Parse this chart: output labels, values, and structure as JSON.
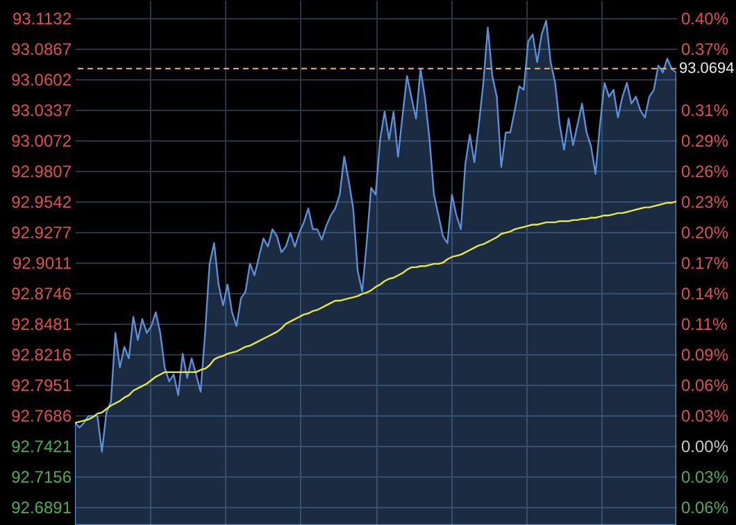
{
  "chart_data": {
    "type": "line",
    "categories": [
      null,
      null,
      null,
      null,
      null,
      null,
      null,
      null,
      null,
      null,
      null,
      null,
      null,
      null,
      null,
      null,
      null,
      null,
      null,
      null,
      null,
      null,
      null,
      null,
      null,
      null,
      null,
      null,
      null,
      null,
      null,
      null,
      null,
      null,
      null,
      null,
      null,
      null,
      null,
      null,
      null,
      null,
      null,
      null,
      null,
      null,
      null,
      null,
      null,
      null,
      null,
      null,
      null,
      null,
      null,
      null,
      null,
      null,
      null,
      null,
      null,
      null,
      null,
      null,
      null,
      null,
      null,
      null,
      null,
      null,
      null,
      null,
      null,
      null,
      null,
      null,
      null,
      null,
      null,
      null,
      null,
      null,
      null,
      null,
      null,
      null,
      null,
      null,
      null,
      null,
      null,
      null,
      null,
      null,
      null,
      null,
      null,
      null,
      null,
      null,
      null,
      null,
      null,
      null,
      null,
      null,
      null,
      null,
      null,
      null,
      null,
      null,
      null,
      null,
      null,
      null,
      null,
      null,
      null,
      null,
      null,
      null,
      null,
      null,
      null,
      null,
      null,
      null,
      null,
      null,
      null,
      null,
      null,
      null,
      null
    ],
    "ylim": [
      92.6734,
      93.1289
    ],
    "yticks": [
      92.6891,
      92.7156,
      92.7421,
      92.7686,
      92.7951,
      92.8216,
      92.8481,
      92.8746,
      92.9011,
      92.9277,
      92.9542,
      92.9807,
      93.0072,
      93.0337,
      93.0602,
      93.0867,
      93.1132
    ],
    "y2lim": [
      -0.0741,
      0.4171
    ],
    "y2ticks": [
      {
        "value": -0.0571,
        "label": "0.06%"
      },
      {
        "value": -0.0286,
        "label": "0.03%"
      },
      {
        "value": 0,
        "label": "0.00%"
      },
      {
        "value": 0.0286,
        "label": "0.03%"
      },
      {
        "value": 0.0571,
        "label": "0.06%"
      },
      {
        "value": 0.0857,
        "label": "0.09%"
      },
      {
        "value": 0.1143,
        "label": "0.11%"
      },
      {
        "value": 0.1429,
        "label": "0.14%"
      },
      {
        "value": 0.1714,
        "label": "0.17%"
      },
      {
        "value": 0.2,
        "label": "0.20%"
      },
      {
        "value": 0.2286,
        "label": "0.23%"
      },
      {
        "value": 0.2572,
        "label": "0.26%"
      },
      {
        "value": 0.2857,
        "label": "0.29%"
      },
      {
        "value": 0.3143,
        "label": "0.31%"
      },
      {
        "value": 0.3429,
        "label": null
      },
      {
        "value": 0.3715,
        "label": "0.37%"
      },
      {
        "value": 0.4,
        "label": "0.40%"
      }
    ],
    "grid": true,
    "line_style": "solid",
    "ref_lines": [
      {
        "axis": "y",
        "value": 93.0694,
        "label": "93.0694",
        "color": "#e8b878",
        "line_style": "dashed"
      }
    ],
    "series": [
      {
        "type": "area",
        "color": "#5b8fd8",
        "values": [
          92.762,
          92.758,
          92.762,
          92.768,
          92.768,
          92.768,
          92.737,
          92.771,
          92.78,
          92.84,
          92.81,
          92.828,
          92.818,
          92.854,
          92.834,
          92.852,
          92.84,
          92.846,
          92.858,
          92.84,
          92.81,
          92.798,
          92.804,
          92.786,
          92.822,
          92.801,
          92.818,
          92.804,
          92.789,
          92.84,
          92.9,
          92.918,
          92.882,
          92.864,
          92.882,
          92.858,
          92.846,
          92.87,
          92.876,
          92.9,
          92.89,
          92.906,
          92.922,
          92.915,
          92.93,
          92.924,
          92.91,
          92.915,
          92.927,
          92.915,
          92.927,
          92.936,
          92.948,
          92.93,
          92.93,
          92.921,
          92.933,
          92.942,
          92.948,
          92.96,
          92.993,
          92.972,
          92.948,
          92.894,
          92.876,
          92.918,
          92.966,
          92.96,
          93.008,
          93.032,
          93.008,
          93.032,
          92.993,
          93.029,
          93.063,
          93.044,
          93.026,
          93.069,
          93.044,
          93.008,
          92.96,
          92.942,
          92.924,
          92.918,
          92.96,
          92.942,
          92.93,
          92.987,
          93.012,
          92.988,
          93.021,
          93.057,
          93.105,
          93.063,
          93.045,
          92.984,
          93.014,
          93.014,
          93.033,
          93.054,
          93.051,
          93.093,
          93.099,
          93.075,
          93.099,
          93.111,
          93.075,
          93.057,
          93.021,
          92.999,
          93.026,
          93.003,
          93.021,
          93.039,
          93.014,
          93.002,
          92.978,
          93.021,
          93.057,
          93.045,
          93.051,
          93.027,
          93.045,
          93.057,
          93.039,
          93.045,
          93.033,
          93.027,
          93.045,
          93.051,
          93.072,
          93.066,
          93.078,
          93.069,
          93.066
        ]
      },
      {
        "color": "#e8e840",
        "values": [
          92.762,
          92.763,
          92.764,
          92.765,
          92.767,
          92.77,
          92.771,
          92.774,
          92.777,
          92.779,
          92.781,
          92.784,
          92.786,
          92.79,
          92.792,
          92.794,
          92.796,
          92.799,
          92.802,
          92.804,
          92.806,
          92.806,
          92.806,
          92.806,
          92.806,
          92.806,
          92.806,
          92.806,
          92.808,
          92.809,
          92.812,
          92.817,
          92.819,
          92.82,
          92.822,
          92.823,
          92.824,
          92.826,
          92.828,
          92.829,
          92.831,
          92.833,
          92.835,
          92.837,
          92.839,
          92.841,
          92.844,
          92.848,
          92.85,
          92.852,
          92.854,
          92.856,
          92.857,
          92.859,
          92.86,
          92.862,
          92.864,
          92.866,
          92.868,
          92.868,
          92.869,
          92.87,
          92.871,
          92.872,
          92.874,
          92.875,
          92.877,
          92.88,
          92.882,
          92.885,
          92.887,
          92.888,
          92.89,
          92.892,
          92.895,
          92.897,
          92.897,
          92.898,
          92.898,
          92.899,
          92.9,
          92.9,
          92.901,
          92.904,
          92.906,
          92.907,
          92.908,
          92.91,
          92.912,
          92.914,
          92.916,
          92.917,
          92.919,
          92.921,
          92.923,
          92.926,
          92.927,
          92.928,
          92.93,
          92.931,
          92.932,
          92.933,
          92.934,
          92.934,
          92.935,
          92.936,
          92.936,
          92.936,
          92.937,
          92.937,
          92.937,
          92.938,
          92.938,
          92.939,
          92.939,
          92.94,
          92.94,
          92.941,
          92.942,
          92.942,
          92.943,
          92.944,
          92.944,
          92.945,
          92.946,
          92.947,
          92.948,
          92.949,
          92.949,
          92.95,
          92.951,
          92.952,
          92.953,
          92.953,
          92.954
        ]
      }
    ]
  }
}
